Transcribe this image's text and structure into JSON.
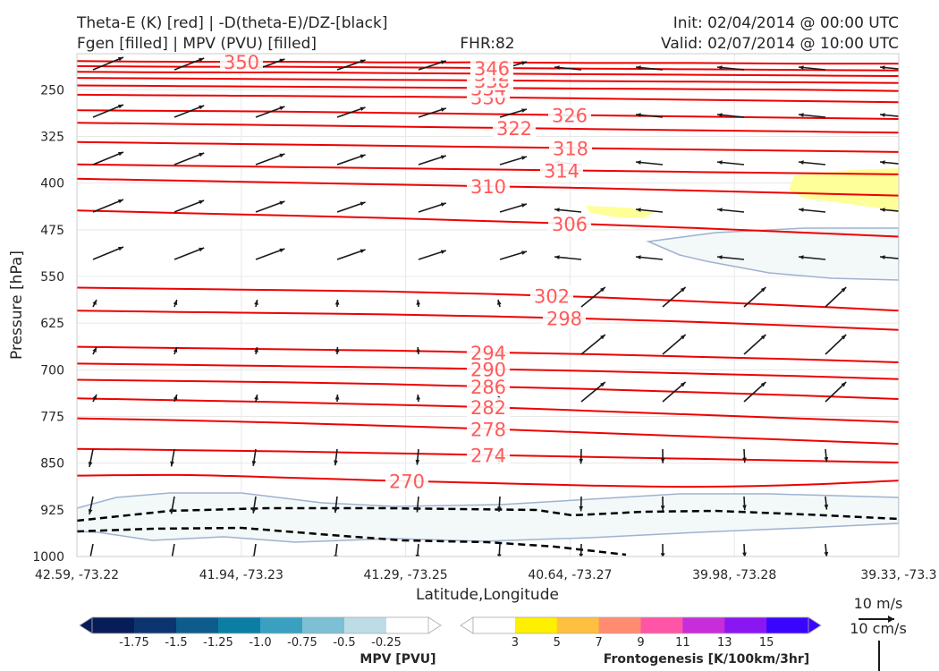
{
  "header": {
    "title_left_1": "Theta-E (K) [red] | -D(theta-E)/DZ-[black]",
    "title_left_2": "Fgen [filled] | MPV (PVU) [filled]",
    "title_center": "FHR:82",
    "title_right_1": "Init: 02/04/2014 @ 00:00 UTC",
    "title_right_2": "Valid: 02/07/2014 @ 10:00 UTC"
  },
  "chart_data": {
    "type": "cross-section",
    "xlabel": "Latitude,Longitude",
    "ylabel": "Pressure [hPa]",
    "x_ticks": [
      "42.59, -73.22",
      "41.94, -73.23",
      "41.29, -73.25",
      "40.64, -73.27",
      "39.98, -73.28",
      "39.33, -73.3"
    ],
    "y_ticks": [
      250,
      325,
      400,
      475,
      550,
      625,
      700,
      775,
      850,
      925,
      1000
    ],
    "ylim": [
      1000,
      192
    ],
    "y_inverted": true,
    "grid": true,
    "theta_e_contours": [
      {
        "label": "270",
        "levels_hpa": [
          870,
          869,
          873,
          878,
          882,
          886,
          888,
          885,
          878
        ]
      },
      {
        "label": "274",
        "levels_hpa": [
          827,
          829,
          831,
          834,
          837,
          840,
          843,
          846,
          849
        ]
      },
      {
        "label": "278",
        "levels_hpa": [
          778,
          781,
          785,
          790,
          795,
          801,
          807,
          813,
          819
        ]
      },
      {
        "label": "282",
        "levels_hpa": [
          746,
          749,
          752,
          756,
          760,
          766,
          772,
          778,
          784
        ]
      },
      {
        "label": "286",
        "levels_hpa": [
          716,
          718,
          720,
          723,
          727,
          731,
          736,
          741,
          747
        ]
      },
      {
        "label": "290",
        "levels_hpa": [
          690,
          692,
          694,
          696,
          699,
          702,
          706,
          710,
          715
        ]
      },
      {
        "label": "294",
        "levels_hpa": [
          663,
          665,
          667,
          669,
          672,
          675,
          679,
          683,
          688
        ]
      },
      {
        "label": "298",
        "levels_hpa": [
          605,
          607,
          609,
          611,
          614,
          618,
          623,
          629,
          636
        ]
      },
      {
        "label": "302",
        "levels_hpa": [
          568,
          570,
          572,
          574,
          578,
          583,
          590,
          597,
          605
        ]
      },
      {
        "label": "306",
        "levels_hpa": [
          444,
          448,
          452,
          456,
          461,
          466,
          472,
          479,
          486
        ]
      },
      {
        "label": "310",
        "levels_hpa": [
          393,
          396,
          399,
          402,
          405,
          408,
          412,
          416,
          420
        ]
      },
      {
        "label": "314",
        "levels_hpa": [
          370,
          372,
          374,
          376,
          378,
          380,
          382,
          384,
          386
        ]
      },
      {
        "label": "318",
        "levels_hpa": [
          334,
          336,
          338,
          340,
          342,
          344,
          346,
          348,
          350
        ]
      },
      {
        "label": "322",
        "levels_hpa": [
          303,
          305,
          307,
          309,
          311,
          313,
          315,
          317,
          319
        ]
      },
      {
        "label": "326",
        "levels_hpa": [
          283,
          284,
          285,
          287,
          289,
          291,
          293,
          295,
          297
        ]
      },
      {
        "label": "330",
        "levels_hpa": [
          258,
          259,
          260,
          261,
          262,
          264,
          266,
          268,
          270
        ]
      },
      {
        "label": "334",
        "levels_hpa": [
          243,
          244,
          245,
          246,
          247,
          248,
          249,
          250,
          252
        ]
      },
      {
        "label": "338",
        "levels_hpa": [
          231,
          232,
          233,
          234,
          235,
          236,
          237,
          238,
          239
        ]
      },
      {
        "label": "342",
        "levels_hpa": [
          221,
          222,
          222,
          223,
          224,
          225,
          226,
          227,
          228
        ]
      },
      {
        "label": "346",
        "levels_hpa": [
          212,
          213,
          213,
          214,
          215,
          216,
          217,
          218,
          219
        ]
      },
      {
        "label": "350",
        "levels_hpa": [
          204,
          205,
          205,
          206,
          206,
          207,
          207,
          208,
          208
        ]
      }
    ],
    "mpv_colorbar": {
      "label": "MPV [PVU]",
      "ticks": [
        "-1.75",
        "-1.5",
        "-1.25",
        "-1.0",
        "-0.75",
        "-0.5",
        "-0.25"
      ],
      "colors": [
        "#081d58",
        "#0c3570",
        "#0e5c8c",
        "#0b7fa3",
        "#3aa0c0",
        "#7dbfd3",
        "#bcdce6",
        "#ffffff"
      ]
    },
    "fgen_colorbar": {
      "label": "Frontogenesis [K/100km/3hr]",
      "ticks": [
        "3",
        "5",
        "7",
        "9",
        "11",
        "13",
        "15"
      ],
      "colors": [
        "#ffffff",
        "#ffef00",
        "#ffbf40",
        "#ff8c70",
        "#ff55a6",
        "#c72dd8",
        "#8a17f2",
        "#3a05ff"
      ]
    },
    "reference_vectors": [
      "10 m/s",
      "10 cm/s"
    ]
  }
}
